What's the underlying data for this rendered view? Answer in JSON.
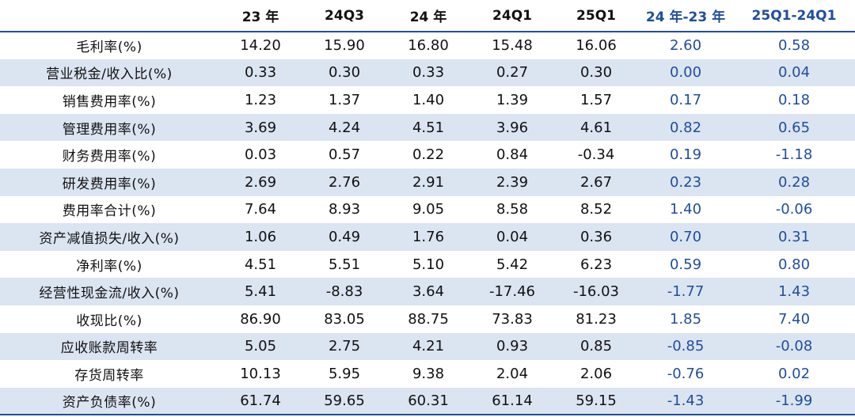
{
  "columns": [
    "",
    "23 年",
    "24Q3",
    "24 年",
    "24Q1",
    "25Q1",
    "24 年-23 年",
    "25Q1-24Q1"
  ],
  "rows": [
    {
      "label": "毛利率(%)",
      "values": [
        "14.20",
        "15.90",
        "16.80",
        "15.48",
        "16.06",
        "2.60",
        "0.58"
      ]
    },
    {
      "label": "营业税金/收入比(%)",
      "values": [
        "0.33",
        "0.30",
        "0.33",
        "0.27",
        "0.30",
        "0.00",
        "0.04"
      ]
    },
    {
      "label": "销售费用率(%)",
      "values": [
        "1.23",
        "1.37",
        "1.40",
        "1.39",
        "1.57",
        "0.17",
        "0.18"
      ]
    },
    {
      "label": "管理费用率(%)",
      "values": [
        "3.69",
        "4.24",
        "4.51",
        "3.96",
        "4.61",
        "0.82",
        "0.65"
      ]
    },
    {
      "label": "财务费用率(%)",
      "values": [
        "0.03",
        "0.57",
        "0.22",
        "0.84",
        "-0.34",
        "0.19",
        "-1.18"
      ]
    },
    {
      "label": "研发费用率(%)",
      "values": [
        "2.69",
        "2.76",
        "2.91",
        "2.39",
        "2.67",
        "0.23",
        "0.28"
      ]
    },
    {
      "label": "费用率合计(%)",
      "values": [
        "7.64",
        "8.93",
        "9.05",
        "8.58",
        "8.52",
        "1.40",
        "-0.06"
      ]
    },
    {
      "label": "资产减值损失/收入(%)",
      "values": [
        "1.06",
        "0.49",
        "1.76",
        "0.04",
        "0.36",
        "0.70",
        "0.31"
      ]
    },
    {
      "label": "净利率(%)",
      "values": [
        "4.51",
        "5.51",
        "5.10",
        "5.42",
        "6.23",
        "0.59",
        "0.80"
      ]
    },
    {
      "label": "经营性现金流/收入(%)",
      "values": [
        "5.41",
        "-8.83",
        "3.64",
        "-17.46",
        "-16.03",
        "-1.77",
        "1.43"
      ]
    },
    {
      "label": "收现比(%)",
      "values": [
        "86.90",
        "83.05",
        "88.75",
        "73.83",
        "81.23",
        "1.85",
        "7.40"
      ]
    },
    {
      "label": "应收账款周转率",
      "values": [
        "5.05",
        "2.75",
        "4.21",
        "0.93",
        "0.85",
        "-0.85",
        "-0.08"
      ]
    },
    {
      "label": "存货周转率",
      "values": [
        "10.13",
        "5.95",
        "9.38",
        "2.04",
        "2.06",
        "-0.76",
        "0.02"
      ]
    },
    {
      "label": "资产负债率(%)",
      "values": [
        "61.74",
        "59.65",
        "60.31",
        "61.14",
        "59.15",
        "-1.43",
        "-1.99"
      ]
    }
  ],
  "colors": {
    "accent": "#1f4e9c",
    "stripe": "#dbe4f1",
    "text": "#111111"
  }
}
